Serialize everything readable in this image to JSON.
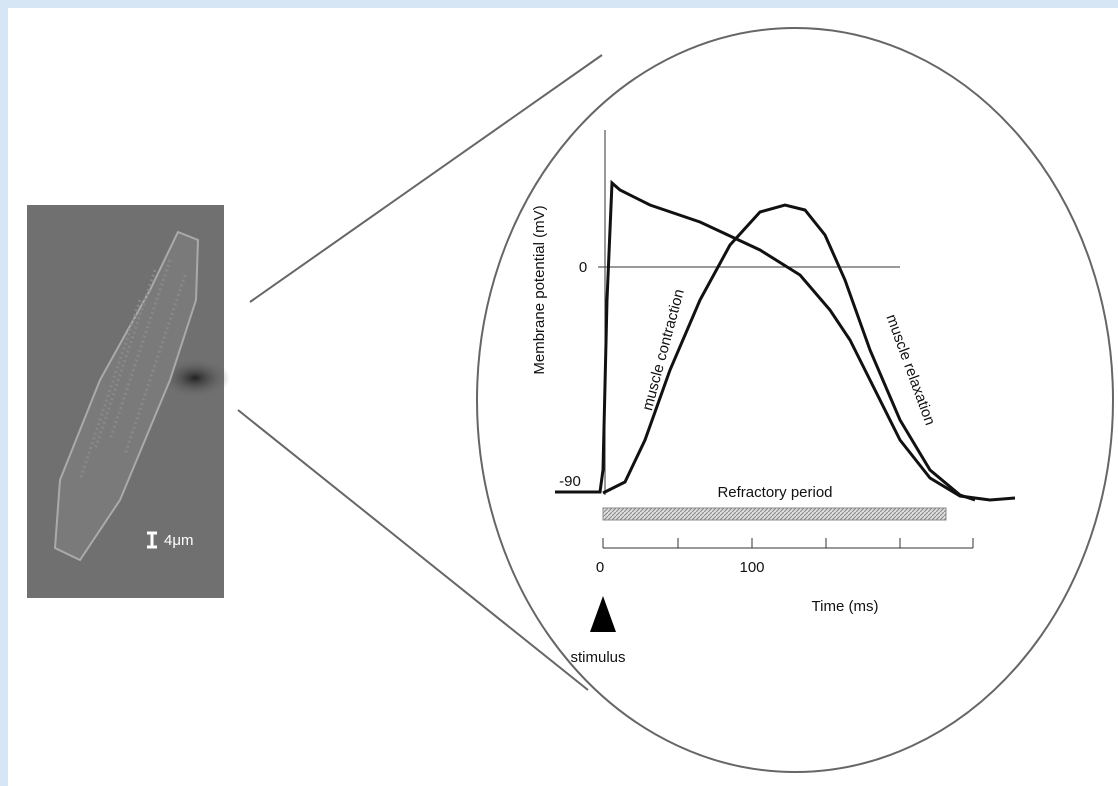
{
  "scale_bar": {
    "label": "4μm"
  },
  "graph": {
    "y_axis_label": "Membrane potential (mV)",
    "y_ticks": [
      "0",
      "-90"
    ],
    "x_ticks": [
      "0",
      "100"
    ],
    "x_axis_label": "Time (ms)",
    "bar_label": "Refractory period",
    "curve_labels": [
      "muscle contraction",
      "muscle relaxation"
    ],
    "stimulus_label": "stimulus"
  }
}
